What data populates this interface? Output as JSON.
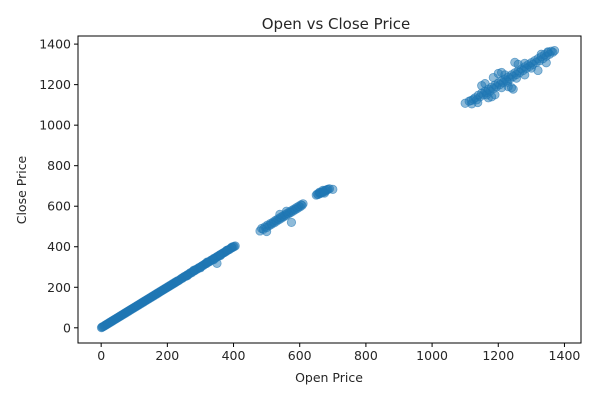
{
  "chart_data": {
    "type": "scatter",
    "title": "Open vs Close Price",
    "xlabel": "Open Price",
    "ylabel": "Close Price",
    "xlim": [
      -70,
      1450
    ],
    "ylim": [
      -75,
      1440
    ],
    "xticks": [
      0,
      200,
      400,
      600,
      800,
      1000,
      1200,
      1400
    ],
    "yticks": [
      0,
      200,
      400,
      600,
      800,
      1000,
      1200,
      1400
    ],
    "grid": false,
    "legend": "none",
    "marker_color": "#1f77b4",
    "marker_opacity": 0.5,
    "series": [
      {
        "points": [
          [
            1,
            1
          ],
          [
            3,
            4
          ],
          [
            5,
            5
          ],
          [
            8,
            7
          ],
          [
            10,
            11
          ],
          [
            13,
            12
          ],
          [
            15,
            16
          ],
          [
            18,
            17
          ],
          [
            20,
            21
          ],
          [
            23,
            22
          ],
          [
            25,
            26
          ],
          [
            28,
            27
          ],
          [
            30,
            31
          ],
          [
            33,
            32
          ],
          [
            35,
            36
          ],
          [
            38,
            37
          ],
          [
            40,
            41
          ],
          [
            43,
            42
          ],
          [
            45,
            46
          ],
          [
            48,
            47
          ],
          [
            50,
            51
          ],
          [
            53,
            52
          ],
          [
            55,
            56
          ],
          [
            58,
            57
          ],
          [
            60,
            61
          ],
          [
            63,
            62
          ],
          [
            65,
            66
          ],
          [
            68,
            67
          ],
          [
            70,
            71
          ],
          [
            73,
            72
          ],
          [
            75,
            76
          ],
          [
            78,
            77
          ],
          [
            80,
            81
          ],
          [
            83,
            82
          ],
          [
            85,
            86
          ],
          [
            88,
            87
          ],
          [
            90,
            91
          ],
          [
            93,
            92
          ],
          [
            95,
            96
          ],
          [
            98,
            97
          ],
          [
            100,
            101
          ],
          [
            103,
            102
          ],
          [
            105,
            106
          ],
          [
            108,
            107
          ],
          [
            110,
            111
          ],
          [
            113,
            112
          ],
          [
            115,
            116
          ],
          [
            118,
            117
          ],
          [
            120,
            121
          ],
          [
            123,
            122
          ],
          [
            125,
            126
          ],
          [
            128,
            127
          ],
          [
            130,
            131
          ],
          [
            133,
            132
          ],
          [
            135,
            136
          ],
          [
            138,
            137
          ],
          [
            140,
            141
          ],
          [
            143,
            142
          ],
          [
            145,
            146
          ],
          [
            148,
            147
          ],
          [
            150,
            151
          ],
          [
            153,
            152
          ],
          [
            155,
            156
          ],
          [
            158,
            157
          ],
          [
            160,
            161
          ],
          [
            163,
            162
          ],
          [
            165,
            166
          ],
          [
            168,
            167
          ],
          [
            170,
            171
          ],
          [
            173,
            172
          ],
          [
            175,
            176
          ],
          [
            178,
            177
          ],
          [
            180,
            181
          ],
          [
            183,
            182
          ],
          [
            185,
            186
          ],
          [
            188,
            187
          ],
          [
            190,
            191
          ],
          [
            193,
            192
          ],
          [
            195,
            196
          ],
          [
            198,
            197
          ],
          [
            200,
            201
          ],
          [
            203,
            202
          ],
          [
            205,
            206
          ],
          [
            208,
            207
          ],
          [
            210,
            211
          ],
          [
            213,
            212
          ],
          [
            215,
            216
          ],
          [
            218,
            217
          ],
          [
            220,
            221
          ],
          [
            223,
            222
          ],
          [
            225,
            226
          ],
          [
            228,
            227
          ],
          [
            230,
            231
          ],
          [
            233,
            232
          ],
          [
            236,
            235
          ],
          [
            240,
            240
          ],
          [
            243,
            244
          ],
          [
            246,
            245
          ],
          [
            249,
            250
          ],
          [
            252,
            253
          ],
          [
            255,
            254
          ],
          [
            258,
            259
          ],
          [
            261,
            262
          ],
          [
            264,
            263
          ],
          [
            267,
            268
          ],
          [
            270,
            272
          ],
          [
            273,
            271
          ],
          [
            276,
            277
          ],
          [
            279,
            280
          ],
          [
            282,
            281
          ],
          [
            285,
            286
          ],
          [
            288,
            289
          ],
          [
            291,
            290
          ],
          [
            294,
            295
          ],
          [
            297,
            298
          ],
          [
            300,
            299
          ],
          [
            303,
            304
          ],
          [
            306,
            307
          ],
          [
            309,
            308
          ],
          [
            312,
            313
          ],
          [
            315,
            316
          ],
          [
            318,
            317
          ],
          [
            321,
            322
          ],
          [
            324,
            325
          ],
          [
            327,
            326
          ],
          [
            330,
            331
          ],
          [
            333,
            334
          ],
          [
            336,
            335
          ],
          [
            339,
            340
          ],
          [
            342,
            343
          ],
          [
            345,
            344
          ],
          [
            348,
            349
          ],
          [
            351,
            352
          ],
          [
            354,
            353
          ],
          [
            357,
            358
          ],
          [
            360,
            361
          ],
          [
            363,
            362
          ],
          [
            366,
            367
          ],
          [
            369,
            370
          ],
          [
            372,
            371
          ],
          [
            375,
            376
          ],
          [
            378,
            377
          ],
          [
            381,
            382
          ],
          [
            384,
            385
          ],
          [
            387,
            386
          ],
          [
            390,
            391
          ],
          [
            393,
            394
          ],
          [
            396,
            395
          ],
          [
            399,
            400
          ],
          [
            402,
            401
          ],
          [
            405,
            404
          ],
          [
            395,
            398
          ],
          [
            380,
            383
          ],
          [
            360,
            356
          ],
          [
            340,
            336
          ],
          [
            320,
            324
          ],
          [
            300,
            296
          ],
          [
            280,
            284
          ],
          [
            260,
            257
          ],
          [
            350,
            318
          ],
          [
            480,
            478
          ],
          [
            485,
            490
          ],
          [
            490,
            486
          ],
          [
            495,
            498
          ],
          [
            500,
            495
          ],
          [
            503,
            507
          ],
          [
            508,
            504
          ],
          [
            512,
            515
          ],
          [
            515,
            511
          ],
          [
            520,
            522
          ],
          [
            523,
            518
          ],
          [
            527,
            530
          ],
          [
            530,
            526
          ],
          [
            534,
            537
          ],
          [
            538,
            534
          ],
          [
            541,
            544
          ],
          [
            545,
            541
          ],
          [
            548,
            551
          ],
          [
            552,
            548
          ],
          [
            555,
            558
          ],
          [
            559,
            555
          ],
          [
            562,
            565
          ],
          [
            566,
            562
          ],
          [
            569,
            572
          ],
          [
            573,
            569
          ],
          [
            576,
            579
          ],
          [
            580,
            576
          ],
          [
            583,
            586
          ],
          [
            587,
            583
          ],
          [
            590,
            593
          ],
          [
            594,
            590
          ],
          [
            597,
            600
          ],
          [
            601,
            597
          ],
          [
            604,
            607
          ],
          [
            607,
            604
          ],
          [
            610,
            612
          ],
          [
            500,
            475
          ],
          [
            575,
            520
          ],
          [
            540,
            560
          ],
          [
            560,
            575
          ],
          [
            650,
            655
          ],
          [
            653,
            660
          ],
          [
            656,
            658
          ],
          [
            659,
            665
          ],
          [
            662,
            663
          ],
          [
            665,
            668
          ],
          [
            668,
            666
          ],
          [
            671,
            673
          ],
          [
            674,
            671
          ],
          [
            677,
            679
          ],
          [
            680,
            677
          ],
          [
            683,
            682
          ],
          [
            686,
            684
          ],
          [
            690,
            686
          ],
          [
            700,
            683
          ],
          [
            660,
            669
          ],
          [
            670,
            678
          ],
          [
            675,
            665
          ],
          [
            1100,
            1108
          ],
          [
            1112,
            1118
          ],
          [
            1120,
            1105
          ],
          [
            1125,
            1128
          ],
          [
            1130,
            1135
          ],
          [
            1135,
            1125
          ],
          [
            1140,
            1148
          ],
          [
            1145,
            1140
          ],
          [
            1150,
            1158
          ],
          [
            1155,
            1150
          ],
          [
            1160,
            1168
          ],
          [
            1165,
            1160
          ],
          [
            1170,
            1178
          ],
          [
            1175,
            1168
          ],
          [
            1180,
            1188
          ],
          [
            1185,
            1180
          ],
          [
            1190,
            1198
          ],
          [
            1195,
            1190
          ],
          [
            1200,
            1208
          ],
          [
            1205,
            1200
          ],
          [
            1210,
            1218
          ],
          [
            1215,
            1210
          ],
          [
            1220,
            1228
          ],
          [
            1225,
            1220
          ],
          [
            1230,
            1238
          ],
          [
            1235,
            1228
          ],
          [
            1240,
            1248
          ],
          [
            1245,
            1240
          ],
          [
            1250,
            1258
          ],
          [
            1255,
            1250
          ],
          [
            1260,
            1268
          ],
          [
            1265,
            1260
          ],
          [
            1270,
            1278
          ],
          [
            1275,
            1270
          ],
          [
            1280,
            1288
          ],
          [
            1285,
            1280
          ],
          [
            1290,
            1298
          ],
          [
            1295,
            1290
          ],
          [
            1300,
            1308
          ],
          [
            1305,
            1300
          ],
          [
            1310,
            1318
          ],
          [
            1315,
            1310
          ],
          [
            1320,
            1328
          ],
          [
            1325,
            1318
          ],
          [
            1330,
            1338
          ],
          [
            1335,
            1328
          ],
          [
            1340,
            1348
          ],
          [
            1345,
            1340
          ],
          [
            1350,
            1358
          ],
          [
            1355,
            1350
          ],
          [
            1360,
            1365
          ],
          [
            1365,
            1360
          ],
          [
            1370,
            1368
          ],
          [
            1150,
            1195
          ],
          [
            1160,
            1205
          ],
          [
            1170,
            1135
          ],
          [
            1180,
            1140
          ],
          [
            1190,
            1150
          ],
          [
            1200,
            1255
          ],
          [
            1210,
            1260
          ],
          [
            1220,
            1248
          ],
          [
            1230,
            1190
          ],
          [
            1240,
            1185
          ],
          [
            1250,
            1310
          ],
          [
            1260,
            1300
          ],
          [
            1245,
            1178
          ],
          [
            1320,
            1270
          ],
          [
            1300,
            1282
          ],
          [
            1280,
            1248
          ],
          [
            1330,
            1350
          ],
          [
            1280,
            1305
          ],
          [
            1185,
            1235
          ],
          [
            1165,
            1150
          ],
          [
            1228,
            1212
          ],
          [
            1255,
            1232
          ],
          [
            1210,
            1185
          ],
          [
            1345,
            1308
          ],
          [
            1350,
            1362
          ],
          [
            1118,
            1122
          ],
          [
            1138,
            1112
          ]
        ]
      }
    ]
  }
}
